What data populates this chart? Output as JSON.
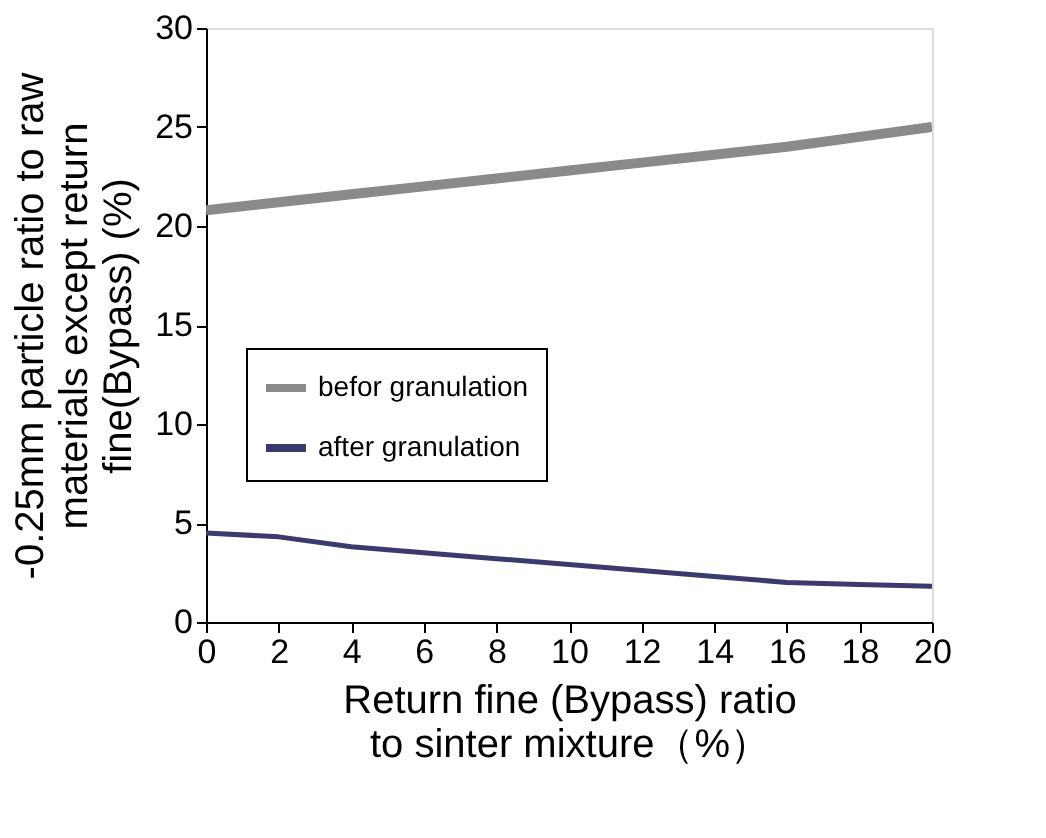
{
  "chart_data": {
    "type": "line",
    "xlabel": "Return fine (Bypass) ratio\nto sinter mixture（%）",
    "ylabel": "-0.25mm particle ratio to raw\nmaterials except return\nfine(Bypass) (%)",
    "x": [
      0,
      2,
      4,
      6,
      8,
      10,
      12,
      14,
      16,
      18,
      20
    ],
    "series": [
      {
        "name": "befor granulation",
        "color": "#8a8a8a",
        "values": [
          20.8,
          21.2,
          21.6,
          22.0,
          22.4,
          22.8,
          23.2,
          23.6,
          24.0,
          24.5,
          25.0
        ]
      },
      {
        "name": "after granulation",
        "color": "#3a3a6e",
        "values": [
          4.5,
          4.3,
          3.8,
          3.5,
          3.2,
          2.9,
          2.6,
          2.3,
          2.0,
          1.9,
          1.8
        ]
      }
    ],
    "xlim": [
      0,
      20
    ],
    "xticks": [
      0,
      2,
      4,
      6,
      8,
      10,
      12,
      14,
      16,
      18,
      20
    ],
    "ylim": [
      0,
      30
    ],
    "yticks": [
      0,
      5,
      10,
      15,
      20,
      25,
      30
    ],
    "grid": false,
    "legend": "left",
    "marker": "none",
    "line_style": "solid"
  }
}
